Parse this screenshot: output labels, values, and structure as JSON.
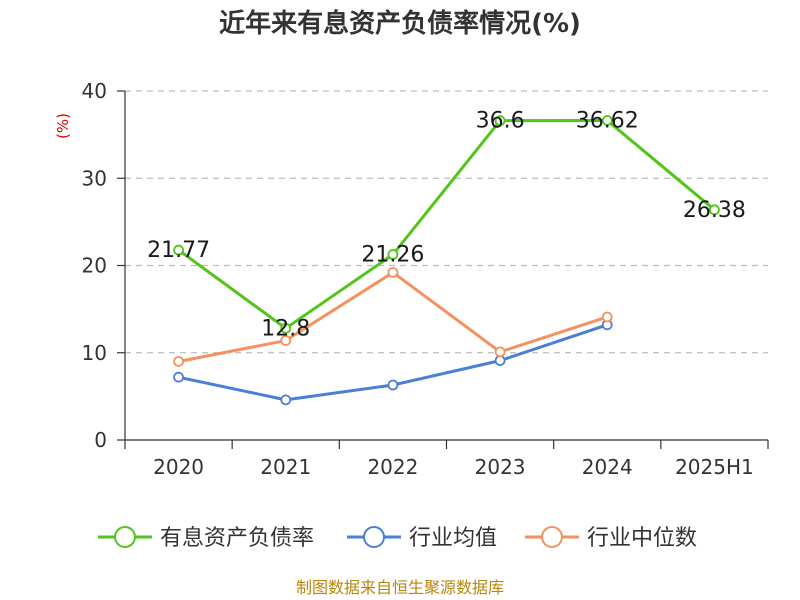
{
  "chart_data": {
    "type": "line",
    "title": "近年来有息资产负债率情况(%)",
    "ylabel": "(%)",
    "xlabel": "",
    "ylim": [
      0,
      40
    ],
    "yticks": [
      0,
      10,
      20,
      30,
      40
    ],
    "categories": [
      "2020",
      "2021",
      "2022",
      "2023",
      "2024",
      "2025H1"
    ],
    "grid": "horizontal-dashed",
    "legend": "bottom",
    "series": [
      {
        "name": "有息资产负债率",
        "color": "#52c41a",
        "values": [
          21.77,
          12.8,
          21.26,
          36.6,
          36.62,
          26.38
        ],
        "labels": [
          "21.77",
          "12.8",
          "21.26",
          "36.6",
          "36.62",
          "26.38"
        ]
      },
      {
        "name": "行业均值",
        "color": "#4a7fd6",
        "values": [
          7.2,
          4.6,
          6.3,
          9.1,
          13.2,
          null
        ]
      },
      {
        "name": "行业中位数",
        "color": "#f4915e",
        "values": [
          9.0,
          11.4,
          19.2,
          10.1,
          14.1,
          null
        ]
      }
    ],
    "source": "制图数据来自恒生聚源数据库"
  }
}
